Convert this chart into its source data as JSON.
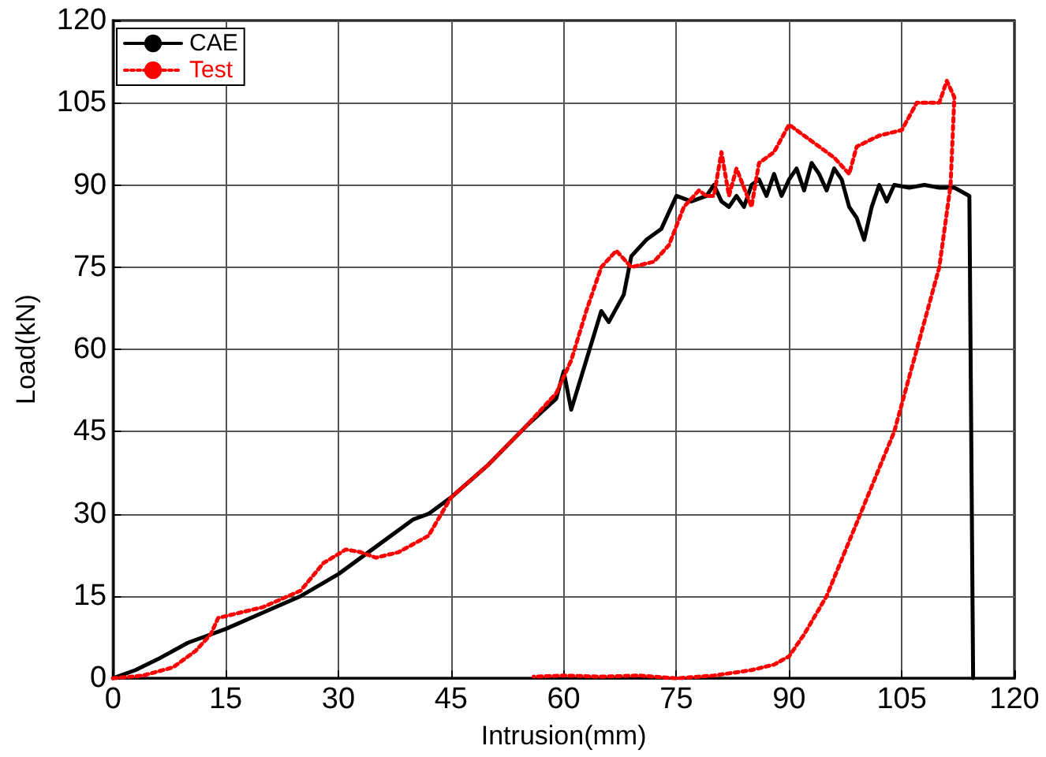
{
  "chart_data": {
    "type": "line",
    "xlabel": "Intrusion(mm)",
    "ylabel": "Load(kN)",
    "xlim": [
      0,
      120
    ],
    "xticks": [
      0,
      15,
      30,
      45,
      60,
      75,
      90,
      105,
      120
    ],
    "ylim": [
      0,
      120
    ],
    "yticks": [
      0,
      15,
      30,
      45,
      60,
      75,
      90,
      105,
      120
    ],
    "grid": true,
    "legend": "top left",
    "marker": "none",
    "series": [
      {
        "name": "CAE",
        "color": "#000000",
        "line_style": "solid",
        "x": [
          0,
          3,
          6,
          10,
          15,
          20,
          25,
          30,
          35,
          40,
          42,
          45,
          50,
          55,
          59,
          60,
          61,
          63,
          65,
          66,
          68,
          69,
          71,
          73,
          75,
          77,
          79,
          80,
          81,
          82,
          83,
          84,
          85,
          86,
          87,
          88,
          89,
          90,
          91,
          92,
          93,
          94,
          95,
          96,
          97,
          98,
          99,
          100,
          101,
          102,
          103,
          104,
          106,
          108,
          110,
          112,
          114,
          114.5
        ],
        "values": [
          0,
          1.5,
          3.5,
          6.5,
          9,
          12,
          15,
          19,
          24,
          29,
          30,
          33,
          39,
          46,
          51,
          56,
          49,
          58,
          67,
          65,
          70,
          77,
          80,
          82,
          88,
          87,
          88,
          90,
          87,
          86,
          88,
          86,
          90,
          91,
          88,
          92,
          88,
          91,
          93,
          89,
          94,
          92,
          89,
          93,
          91,
          86,
          84,
          80,
          86,
          90,
          87,
          90,
          89.5,
          90,
          89.5,
          89.5,
          88,
          0
        ]
      },
      {
        "name": "Test",
        "color": "#ff0000",
        "line_style": "dotted",
        "x": [
          0,
          4,
          8,
          11,
          13,
          14,
          17,
          20,
          25,
          28,
          31,
          33,
          35,
          38,
          42,
          45,
          50,
          55,
          59,
          61,
          63,
          65,
          67,
          69,
          72,
          74,
          76,
          78,
          79,
          80,
          81,
          82,
          83,
          85,
          86,
          88,
          90,
          93,
          96,
          98,
          99,
          102,
          105,
          107,
          110,
          111,
          112,
          111.5,
          110,
          108,
          106,
          104,
          101,
          98,
          95,
          92,
          90,
          88,
          85,
          80,
          75,
          70,
          65,
          60,
          56
        ],
        "values": [
          0,
          0.5,
          2,
          5,
          8,
          11,
          12,
          13,
          16,
          21,
          23.5,
          23,
          22,
          23,
          26,
          33,
          39,
          46,
          52,
          58,
          67,
          75,
          78,
          75,
          76,
          79,
          86,
          89,
          88,
          88,
          96,
          88,
          93,
          86,
          94,
          96,
          101,
          98,
          95,
          92,
          97,
          99,
          100,
          105,
          105,
          109,
          106,
          90,
          75,
          65,
          55,
          45,
          35,
          25,
          15,
          8,
          4,
          2.5,
          1.5,
          0.5,
          0,
          0.5,
          0.3,
          0.5,
          0.3
        ]
      }
    ]
  }
}
